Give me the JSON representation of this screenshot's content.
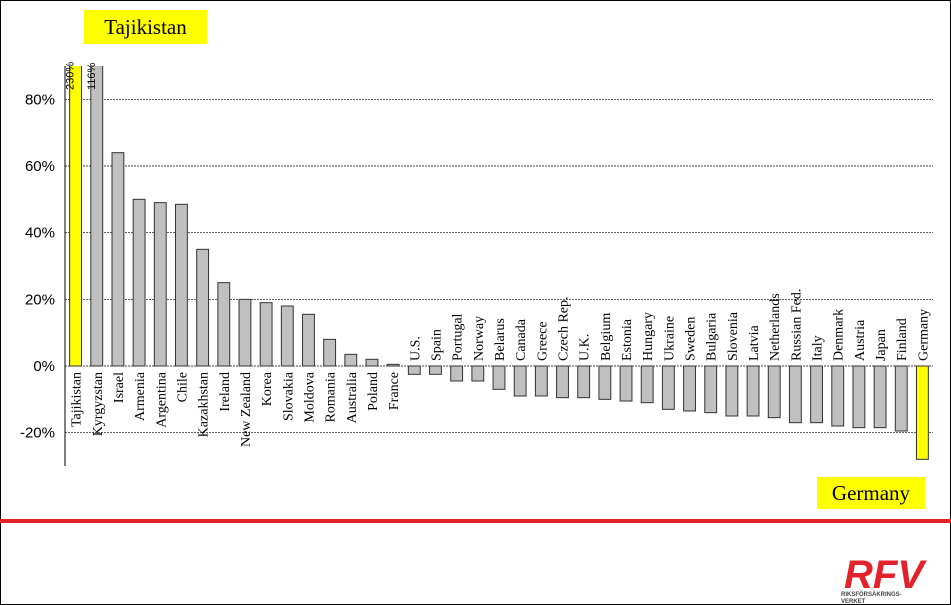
{
  "chart_data": {
    "type": "bar",
    "categories": [
      "Tajikistan",
      "Kyrgyzstan",
      "Israel",
      "Armenia",
      "Argentina",
      "Chile",
      "Kazakhstan",
      "Ireland",
      "New Zealand",
      "Korea",
      "Slovakia",
      "Moldova",
      "Romania",
      "Australia",
      "Poland",
      "France",
      "U.S.",
      "Spain",
      "Portugal",
      "Norway",
      "Belarus",
      "Canada",
      "Greece",
      "Czech Rep.",
      "U.K.",
      "Belgium",
      "Estonia",
      "Hungary",
      "Ukraine",
      "Sweden",
      "Bulgaria",
      "Slovenia",
      "Latvia",
      "Netherlands",
      "Russian Fed.",
      "Italy",
      "Denmark",
      "Austria",
      "Japan",
      "Finland",
      "Germany"
    ],
    "values": [
      230,
      116,
      64,
      50,
      49,
      48.5,
      35,
      25,
      20,
      19,
      18,
      15.5,
      8,
      3.5,
      2,
      0.5,
      -2.5,
      -2.5,
      -4.5,
      -4.5,
      -7,
      -9,
      -9,
      -9.5,
      -9.5,
      -10,
      -10.5,
      -11,
      -13,
      -13.5,
      -14,
      -15,
      -15,
      -15.5,
      -17,
      -17,
      -18,
      -18.5,
      -18.5,
      -19.5,
      -28
    ],
    "value_labels": [
      "230%",
      "116%",
      null,
      null,
      null,
      null,
      null,
      null,
      null,
      null,
      null,
      null,
      null,
      null,
      null,
      null,
      null,
      null,
      null,
      null,
      null,
      null,
      null,
      null,
      null,
      null,
      null,
      null,
      null,
      null,
      null,
      null,
      null,
      null,
      null,
      null,
      null,
      null,
      null,
      null,
      null
    ],
    "color": "#c0c0c0",
    "highlight_color": "#ffff00",
    "annotations": [
      {
        "text": "Tajikistan"
      },
      {
        "text": "Germany"
      }
    ],
    "ylim": [
      -30,
      90
    ],
    "yticks": [
      {
        "value": -20,
        "label": "-20%"
      },
      {
        "value": 0,
        "label": "0%"
      },
      {
        "value": 20,
        "label": "20%"
      },
      {
        "value": 40,
        "label": "40%"
      },
      {
        "value": 60,
        "label": "60%"
      },
      {
        "value": 80,
        "label": "80%"
      }
    ],
    "grid": true
  },
  "logo": {
    "name": "RFV",
    "line1": "RIKSFÖRSÄKRINGS-",
    "line2": "VERKET"
  }
}
